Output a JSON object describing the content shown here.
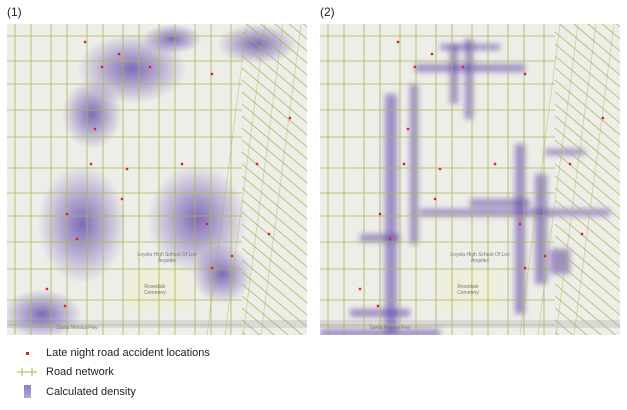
{
  "panels": [
    {
      "title": "(1)",
      "mode": "kernel"
    },
    {
      "title": "(2)",
      "mode": "network"
    }
  ],
  "map_labels": {
    "school": "Loyola High School Of Los Angeles",
    "cemetery": "Rosedale Cemetery",
    "freeway": "Santa Monica Fwy"
  },
  "legend": {
    "accidents": "Late night road accident locations",
    "roads": "Road network",
    "density": "Calculated density"
  },
  "colors": {
    "accident": "#d42a1e",
    "road": "#a8b45a",
    "density": "#5b3fa8",
    "background": "#eeeee9",
    "cemetery": "#eeeedb",
    "freeway": "#d9d9dc"
  }
}
